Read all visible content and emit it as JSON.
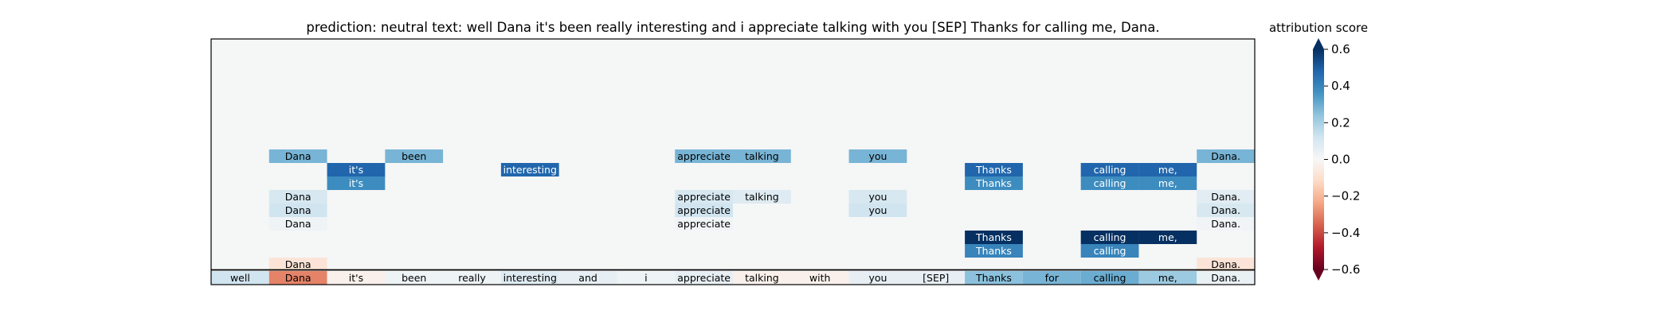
{
  "chart_data": {
    "type": "heatmap",
    "title": "prediction:  neutral     text:  well Dana it's been really interesting and i appreciate talking with you [SEP] Thanks for calling me, Dana.",
    "tokens": [
      "well",
      "Dana",
      "it's",
      "been",
      "really",
      "interesting",
      "and",
      "i",
      "appreciate",
      "talking",
      "with",
      "you",
      "[SEP]",
      "Thanks",
      "for",
      "calling",
      "me,",
      "Dana."
    ],
    "input_row": [
      0.12,
      -0.3,
      -0.03,
      0.03,
      0.03,
      0.08,
      0.05,
      0.03,
      0.05,
      -0.03,
      -0.03,
      0.05,
      0.05,
      0.25,
      0.28,
      0.3,
      0.22,
      0.04
    ],
    "rows": [
      {
        "cells": [
          {
            "col": 1,
            "value": 0.28
          },
          {
            "col": 3,
            "value": 0.28
          },
          {
            "col": 8,
            "value": 0.28
          },
          {
            "col": 9,
            "value": 0.28
          },
          {
            "col": 11,
            "value": 0.28
          },
          {
            "col": 17,
            "value": 0.28
          }
        ]
      },
      {
        "cells": [
          {
            "col": 2,
            "value": 0.48
          },
          {
            "col": 5,
            "value": 0.48
          },
          {
            "col": 13,
            "value": 0.48
          },
          {
            "col": 15,
            "value": 0.48
          },
          {
            "col": 16,
            "value": 0.48
          }
        ]
      },
      {
        "cells": [
          {
            "col": 2,
            "value": 0.38
          },
          {
            "col": 13,
            "value": 0.38
          },
          {
            "col": 15,
            "value": 0.38
          },
          {
            "col": 16,
            "value": 0.38
          }
        ]
      },
      {
        "cells": [
          {
            "col": 1,
            "value": 0.1
          },
          {
            "col": 8,
            "value": 0.1
          },
          {
            "col": 9,
            "value": 0.08
          },
          {
            "col": 11,
            "value": 0.1
          },
          {
            "col": 17,
            "value": 0.07
          }
        ]
      },
      {
        "cells": [
          {
            "col": 1,
            "value": 0.12
          },
          {
            "col": 8,
            "value": 0.12
          },
          {
            "col": 11,
            "value": 0.12
          },
          {
            "col": 17,
            "value": 0.1
          }
        ]
      },
      {
        "cells": [
          {
            "col": 1,
            "value": 0.03
          },
          {
            "col": 8,
            "value": 0.02
          },
          {
            "col": 17,
            "value": 0.02
          }
        ]
      },
      {
        "cells": [
          {
            "col": 13,
            "value": 0.6
          },
          {
            "col": 15,
            "value": 0.6
          },
          {
            "col": 16,
            "value": 0.6
          }
        ]
      },
      {
        "cells": [
          {
            "col": 13,
            "value": 0.4
          },
          {
            "col": 15,
            "value": 0.4
          }
        ]
      },
      {
        "cells": [
          {
            "col": 1,
            "value": -0.08
          },
          {
            "col": 17,
            "value": -0.08
          }
        ]
      }
    ],
    "colorbar": {
      "label": "attribution score",
      "ticks": [
        "0.6",
        "0.4",
        "0.2",
        "0.0",
        "−0.2",
        "−0.4",
        "−0.6"
      ],
      "range": [
        -0.6,
        0.6
      ],
      "colormap": "RdBu"
    }
  }
}
